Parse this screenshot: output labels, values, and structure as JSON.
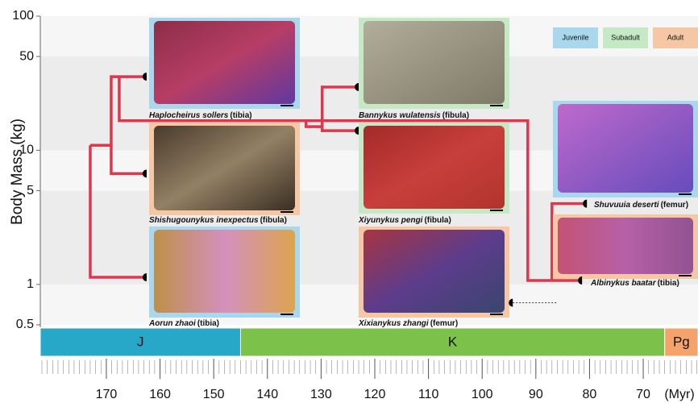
{
  "chart_data": {
    "type": "tree",
    "y_label": "Body Mass  (kg)",
    "x_unit": "(Myr)",
    "log_y": true,
    "ylim": [
      0.5,
      100
    ],
    "yticks": [
      0.5,
      1,
      5,
      10,
      50,
      100
    ],
    "xlim": [
      182.3,
      59.8
    ],
    "xticks": [
      170,
      160,
      150,
      140,
      130,
      120,
      110,
      100,
      90,
      80,
      70
    ],
    "minor_tick_step": 1,
    "branch_color": "#e0364c",
    "periods": [
      {
        "name": "J",
        "start": 182.3,
        "end": 145,
        "color": "#27a8c8"
      },
      {
        "name": "K",
        "start": 145,
        "end": 66,
        "color": "#7cc14a"
      },
      {
        "name": "Pg",
        "start": 66,
        "end": 59.8,
        "color": "#f4a46a"
      }
    ],
    "legend": [
      {
        "name": "Juvenile",
        "color": "#a9d8ee"
      },
      {
        "name": "Subadult",
        "color": "#c5e9c5"
      },
      {
        "name": "Adult",
        "color": "#f6c7a5"
      }
    ],
    "taxa": [
      {
        "name": "Haplocheirus sollers",
        "element": "(tibia)",
        "stage": "Juvenile",
        "age": 162.5,
        "mass": 35.4
      },
      {
        "name": "Shishugounykus inexpectus",
        "element": "(fibula)",
        "stage": "Adult",
        "age": 162.5,
        "mass": 6.7
      },
      {
        "name": "Aorun zhaoi",
        "element": "(tibia)",
        "stage": "Juvenile",
        "age": 162.5,
        "mass": 1.13
      },
      {
        "name": "Bannykus wulatensis",
        "element": "(fibula)",
        "stage": "Subadult",
        "age": 123,
        "mass": 29.6
      },
      {
        "name": "Xiyunykus pengi",
        "element": "(fibula)",
        "stage": "Subadult",
        "age": 123,
        "mass": 14.0
      },
      {
        "name": "Xixianykus zhangi",
        "element": "(femur)",
        "stage": "Adult",
        "age": 94.3,
        "mass": 0.73
      },
      {
        "name": "Shuvuuia deserti",
        "element": "(femur)",
        "stage": "Juvenile",
        "age": 80.5,
        "mass": 4.0
      },
      {
        "name": "Albinykus baatar",
        "element": "(tibia)",
        "stage": "Adult",
        "age": 81.4,
        "mass": 1.07
      }
    ],
    "branches": [
      {
        "age": [
          173,
          173,
          162.5
        ],
        "mass": [
          10.9,
          1.13,
          1.13
        ]
      },
      {
        "age": [
          173,
          169.1,
          169.1,
          162.5
        ],
        "mass": [
          10.9,
          10.9,
          35.4,
          35.4
        ]
      },
      {
        "age": [
          169.1,
          169.1,
          162.5
        ],
        "mass": [
          10.9,
          6.7,
          6.7
        ]
      },
      {
        "age": [
          167.6,
          167.6,
          91.5,
          91.5,
          87
        ],
        "mass": [
          35.4,
          16.6,
          16.6,
          1.07,
          1.07
        ]
      },
      {
        "age": [
          132.8,
          132.8,
          129.8,
          129.8,
          123
        ],
        "mass": [
          16.6,
          15.0,
          15.0,
          29.6,
          29.6
        ]
      },
      {
        "age": [
          129.8,
          129.8,
          123
        ],
        "mass": [
          15.0,
          14.0,
          14.0
        ]
      },
      {
        "age": [
          87,
          87,
          80.5
        ],
        "mass": [
          1.07,
          4.0,
          4.0
        ]
      },
      {
        "age": [
          87,
          81.4
        ],
        "mass": [
          1.07,
          1.07
        ]
      },
      {
        "age": [
          94.3,
          86.2
        ],
        "mass": [
          0.73,
          0.73
        ],
        "dotted": true
      }
    ]
  }
}
